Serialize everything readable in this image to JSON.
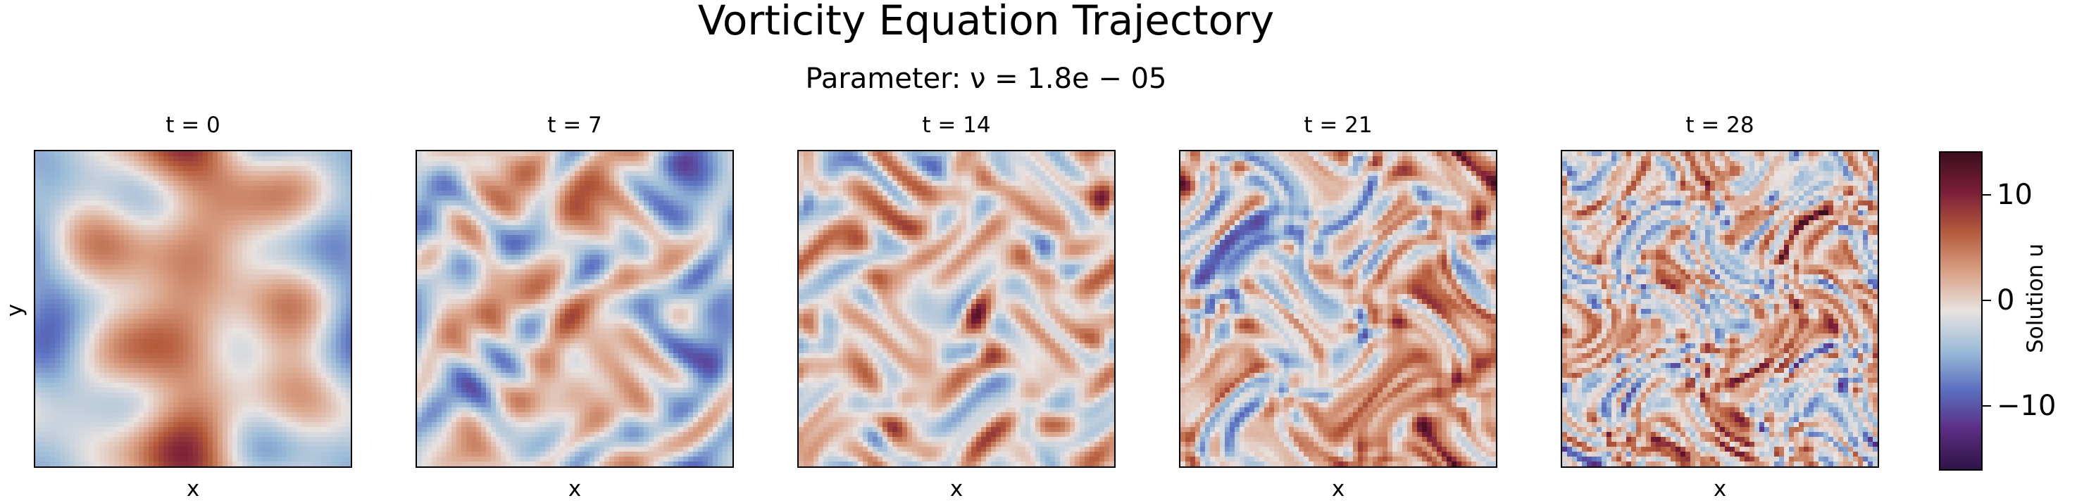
{
  "chart_data": {
    "type": "heatmap",
    "title": "Vorticity Equation Trajectory",
    "subtitle": "Parameter: ν = 1.8e − 05",
    "panels": [
      {
        "title": "t = 0",
        "t": 0
      },
      {
        "title": "t = 7",
        "t": 7
      },
      {
        "title": "t = 14",
        "t": 14
      },
      {
        "title": "t = 21",
        "t": 21
      },
      {
        "title": "t = 28",
        "t": 28
      }
    ],
    "xlabel": "x",
    "ylabel": "y",
    "colorbar": {
      "label": "Solution u",
      "range": [
        -16,
        14
      ],
      "ticks": [
        10,
        0,
        -10
      ],
      "tick_labels": [
        "10",
        "0",
        "−10"
      ],
      "colormap": "twilight_shifted",
      "colors": [
        "#2f1446",
        "#5b2d83",
        "#5a6fc0",
        "#9cbcd8",
        "#e8e2e0",
        "#d9a084",
        "#b45a3a",
        "#7c1e3a",
        "#3c0f1c"
      ]
    }
  }
}
